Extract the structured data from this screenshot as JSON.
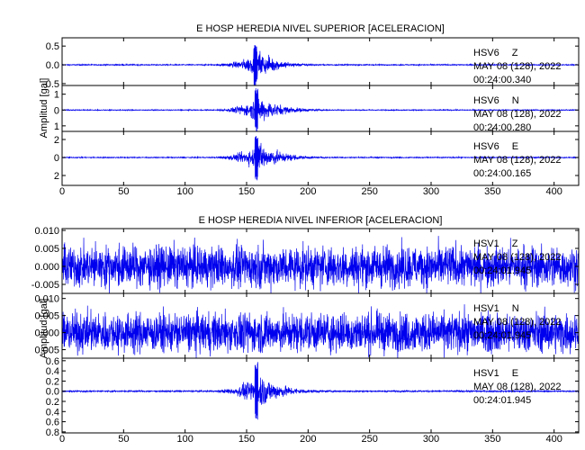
{
  "chart_data": [
    {
      "type": "line",
      "title": "E HOSP HEREDIA NIVEL SUPERIOR [ACELERACION]",
      "ylabel": "Amplitud [gal]",
      "xlim": [
        0,
        420
      ],
      "xticks": [
        0,
        50,
        100,
        150,
        200,
        250,
        300,
        350,
        400
      ],
      "traces": [
        {
          "station": "HSV6",
          "component": "Z",
          "date": "MAY 08 (128), 2022",
          "time": "00:24:00.340",
          "ylim": [
            -0.55,
            0.72
          ],
          "yticks": [
            0.5,
            0.0,
            -0.5
          ],
          "ytick_labels": [
            "0.5",
            "0.0",
            "0.5"
          ],
          "noise": 0.01,
          "peak": 0.5,
          "onset": 127,
          "peak_time": 157,
          "coda": 195
        },
        {
          "station": "HSV6",
          "component": "N",
          "date": "MAY 08 (128), 2022",
          "time": "00:24:00.280",
          "ylim": [
            -1.35,
            1.55
          ],
          "yticks": [
            1,
            0,
            -1
          ],
          "ytick_labels": [
            "1",
            "0",
            "1"
          ],
          "noise": 0.02,
          "peak": 1.2,
          "onset": 127,
          "peak_time": 158,
          "coda": 200
        },
        {
          "station": "HSV6",
          "component": "E",
          "date": "MAY 08 (128), 2022",
          "time": "00:24:00.165",
          "ylim": [
            -3.1,
            2.9
          ],
          "yticks": [
            2,
            0,
            -2
          ],
          "ytick_labels": [
            "2",
            "0",
            "2"
          ],
          "noise": 0.04,
          "peak": 2.3,
          "onset": 127,
          "peak_time": 158,
          "coda": 200
        }
      ]
    },
    {
      "type": "line",
      "title": "E HOSP HEREDIA NIVEL INFERIOR [ACELERACION]",
      "ylabel": "Amplitud [gal]",
      "xlim": [
        0,
        420
      ],
      "xticks": [
        0,
        50,
        100,
        150,
        200,
        250,
        300,
        350,
        400
      ],
      "traces": [
        {
          "station": "HSV1",
          "component": "Z",
          "date": "MAY 08 (128), 2022",
          "time": "00:24:01.945",
          "ylim": [
            -0.0075,
            0.0105
          ],
          "yticks": [
            0.01,
            0.005,
            0.0,
            -0.005
          ],
          "ytick_labels": [
            "0.010",
            "0.005",
            "0.000",
            "-0.005"
          ],
          "noise": 0.004,
          "peak": 0,
          "onset": 0,
          "peak_time": 0,
          "coda": 0
        },
        {
          "station": "HSV1",
          "component": "N",
          "date": "MAY 08 (128), 2022",
          "time": "00:24:01.945",
          "ylim": [
            -0.0075,
            0.0115
          ],
          "yticks": [
            0.01,
            0.005,
            0.0,
            -0.005
          ],
          "ytick_labels": [
            "0.010",
            "0.005",
            "0.000",
            "0.005"
          ],
          "noise": 0.004,
          "peak": 0,
          "onset": 0,
          "peak_time": 0,
          "coda": 0
        },
        {
          "station": "HSV1",
          "component": "E",
          "date": "MAY 08 (128), 2022",
          "time": "00:24:01.945",
          "ylim": [
            -0.82,
            0.65
          ],
          "yticks": [
            0.6,
            0.4,
            0.2,
            0.0,
            -0.2,
            -0.4,
            -0.6,
            -0.8
          ],
          "ytick_labels": [
            "0.6",
            "0.4",
            "0.2",
            "0.0",
            "0.2",
            "0.4",
            "0.6",
            "0.8"
          ],
          "noise": 0.01,
          "peak": 0.5,
          "onset": 127,
          "peak_time": 158,
          "coda": 200
        }
      ]
    }
  ],
  "colors": {
    "trace": "#0000ee",
    "axes": "#000000",
    "background": "#ffffff"
  }
}
